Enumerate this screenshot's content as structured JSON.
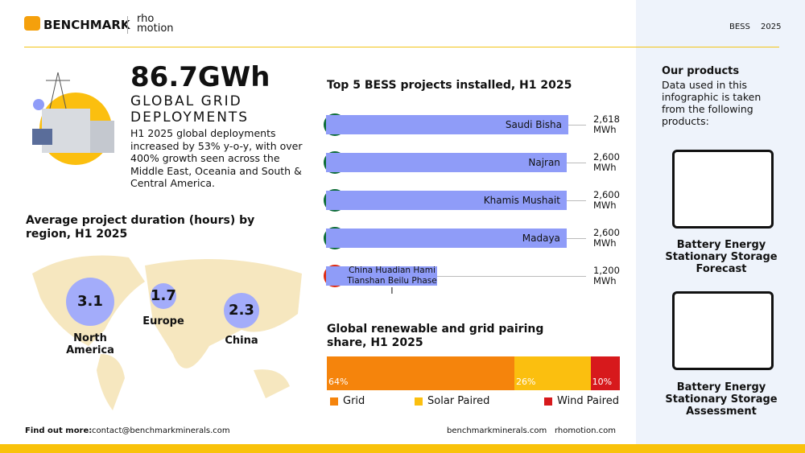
{
  "header": {
    "brand": "BENCHMARK",
    "partner": "rho motion",
    "tag": "BESS",
    "year": "2025"
  },
  "hero": {
    "figure": "86.7GWh",
    "subtitle": "GLOBAL GRID DEPLOYMENTS",
    "text": "H1 2025 global deployments increased by 53% y-o-y, with over 400% growth seen across the Middle East, Oceania and South & Central America."
  },
  "chart_data": [
    {
      "type": "hbar",
      "title": "Top 5 BESS projects installed, H1 2025",
      "categories": [
        "Saudi Bisha",
        "Najran",
        "Khamis Mushait",
        "Madaya",
        "China Huadian Hami Tianshan Beilu Phase I"
      ],
      "values": [
        2618,
        2600,
        2600,
        2600,
        1200
      ],
      "value_labels": [
        "2,618 MWh",
        "2,600 MWh",
        "2,600 MWh",
        "2,600 MWh",
        "1,200 MWh"
      ],
      "color": "#8f9cf8"
    },
    {
      "type": "stacked",
      "title": "Global renewable and grid pairing share, H1 2025",
      "series": [
        {
          "name": "Grid",
          "color": "#f5840c",
          "values": [
            64
          ],
          "value_labels": [
            "64%"
          ]
        },
        {
          "name": "Solar Paired",
          "color": "#fbbf0f",
          "values": [
            26
          ],
          "value_labels": [
            "26%"
          ]
        },
        {
          "name": "Wind Paired",
          "color": "#d7191c",
          "values": [
            10
          ],
          "value_labels": [
            "10%"
          ]
        }
      ]
    },
    {
      "type": "bubble",
      "title": "Average project duration (hours) by region, H1 2025",
      "categories": [
        "North America",
        "Europe",
        "China"
      ],
      "values": [
        3.1,
        1.7,
        2.3
      ],
      "color": "#a3acfa"
    }
  ],
  "footer": {
    "label": "Find out more:",
    "email": "contact@benchmarkminerals.com",
    "site1": "benchmarkminerals.com",
    "site2": "rhomotion.com"
  },
  "sidebar": {
    "title": "Our products",
    "text": "Data used in this infographic is taken from the following products:",
    "products": [
      "Battery Energy Stationary Storage Forecast",
      "Battery Energy Stationary Storage Assessment"
    ]
  }
}
